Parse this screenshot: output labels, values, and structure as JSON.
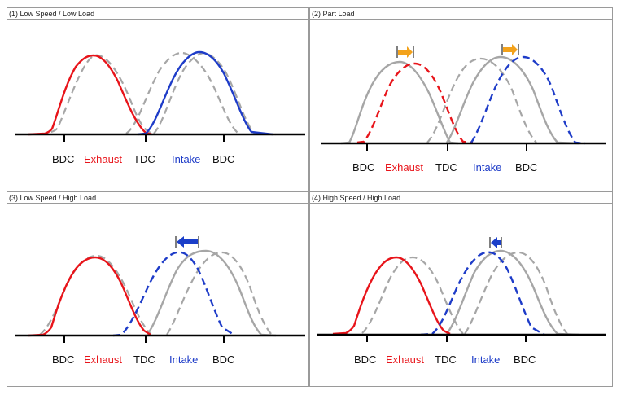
{
  "colors": {
    "exhaust": "#e8141a",
    "intake": "#1e3cc8",
    "baseline": "#a6a6a6",
    "axis": "#000000",
    "text": "#111111",
    "arrow_small": "#f3a21b",
    "arrow_large": "#1b3fc9"
  },
  "labels": {
    "bdc": "BDC",
    "exhaust": "Exhaust",
    "tdc": "TDC",
    "intake": "Intake"
  },
  "panels": [
    {
      "title": "(1) Low Speed / Low Load"
    },
    {
      "title": "(2) Part Load"
    },
    {
      "title": "(3) Low Speed / High Load"
    },
    {
      "title": "(4) High Speed / High Load"
    }
  ],
  "icons": [
    "arrow-right-icon",
    "arrow-left-icon"
  ]
}
